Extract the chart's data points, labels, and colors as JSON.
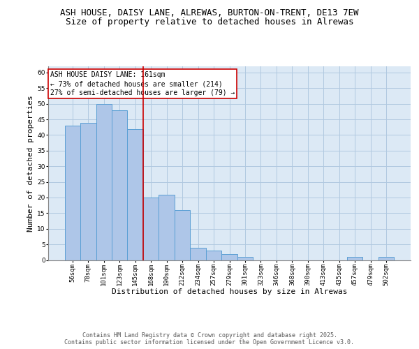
{
  "title_line1": "ASH HOUSE, DAISY LANE, ALREWAS, BURTON-ON-TRENT, DE13 7EW",
  "title_line2": "Size of property relative to detached houses in Alrewas",
  "xlabel": "Distribution of detached houses by size in Alrewas",
  "ylabel": "Number of detached properties",
  "categories": [
    "56sqm",
    "78sqm",
    "101sqm",
    "123sqm",
    "145sqm",
    "168sqm",
    "190sqm",
    "212sqm",
    "234sqm",
    "257sqm",
    "279sqm",
    "301sqm",
    "323sqm",
    "346sqm",
    "368sqm",
    "390sqm",
    "413sqm",
    "435sqm",
    "457sqm",
    "479sqm",
    "502sqm"
  ],
  "values": [
    43,
    44,
    50,
    48,
    42,
    20,
    21,
    16,
    4,
    3,
    2,
    1,
    0,
    0,
    0,
    0,
    0,
    0,
    1,
    0,
    1
  ],
  "bar_color": "#aec6e8",
  "bar_edge_color": "#5a9fd4",
  "bg_color": "#dce9f5",
  "vline_color": "#cc0000",
  "vline_x_index": 5,
  "annotation_line1": "ASH HOUSE DAISY LANE: 161sqm",
  "annotation_line2": "← 73% of detached houses are smaller (214)",
  "annotation_line3": "27% of semi-detached houses are larger (79) →",
  "annotation_box_color": "white",
  "annotation_box_edge": "#cc0000",
  "ylim": [
    0,
    62
  ],
  "yticks": [
    0,
    5,
    10,
    15,
    20,
    25,
    30,
    35,
    40,
    45,
    50,
    55,
    60
  ],
  "footer_text": "Contains HM Land Registry data © Crown copyright and database right 2025.\nContains public sector information licensed under the Open Government Licence v3.0.",
  "grid_color": "#b0c8e0",
  "title_fontsize": 9,
  "subtitle_fontsize": 9,
  "axis_label_fontsize": 8,
  "tick_fontsize": 6.5,
  "annotation_fontsize": 7,
  "footer_fontsize": 6,
  "ylabel_fontsize": 8
}
